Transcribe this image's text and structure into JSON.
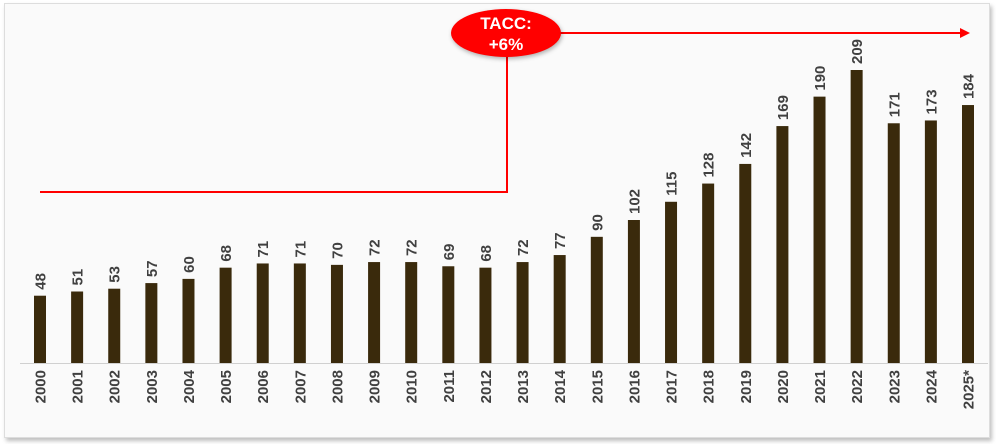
{
  "chart_data": {
    "type": "bar",
    "categories": [
      "2000",
      "2001",
      "2002",
      "2003",
      "2004",
      "2005",
      "2006",
      "2007",
      "2008",
      "2009",
      "2010",
      "2011",
      "2012",
      "2013",
      "2014",
      "2015",
      "2016",
      "2017",
      "2018",
      "2019",
      "2020",
      "2021",
      "2022",
      "2023",
      "2024",
      "2025*"
    ],
    "values": [
      48,
      51,
      53,
      57,
      60,
      68,
      71,
      71,
      70,
      72,
      72,
      69,
      68,
      72,
      77,
      90,
      102,
      115,
      128,
      142,
      169,
      190,
      209,
      171,
      173,
      184
    ],
    "title": "",
    "xlabel": "",
    "ylabel": "",
    "ylim": [
      0,
      215
    ],
    "grid": false,
    "bar_color": "#3a2a0c",
    "annotation": {
      "line1": "TACC:",
      "line2": "+6%",
      "color": "#ff0000"
    }
  }
}
